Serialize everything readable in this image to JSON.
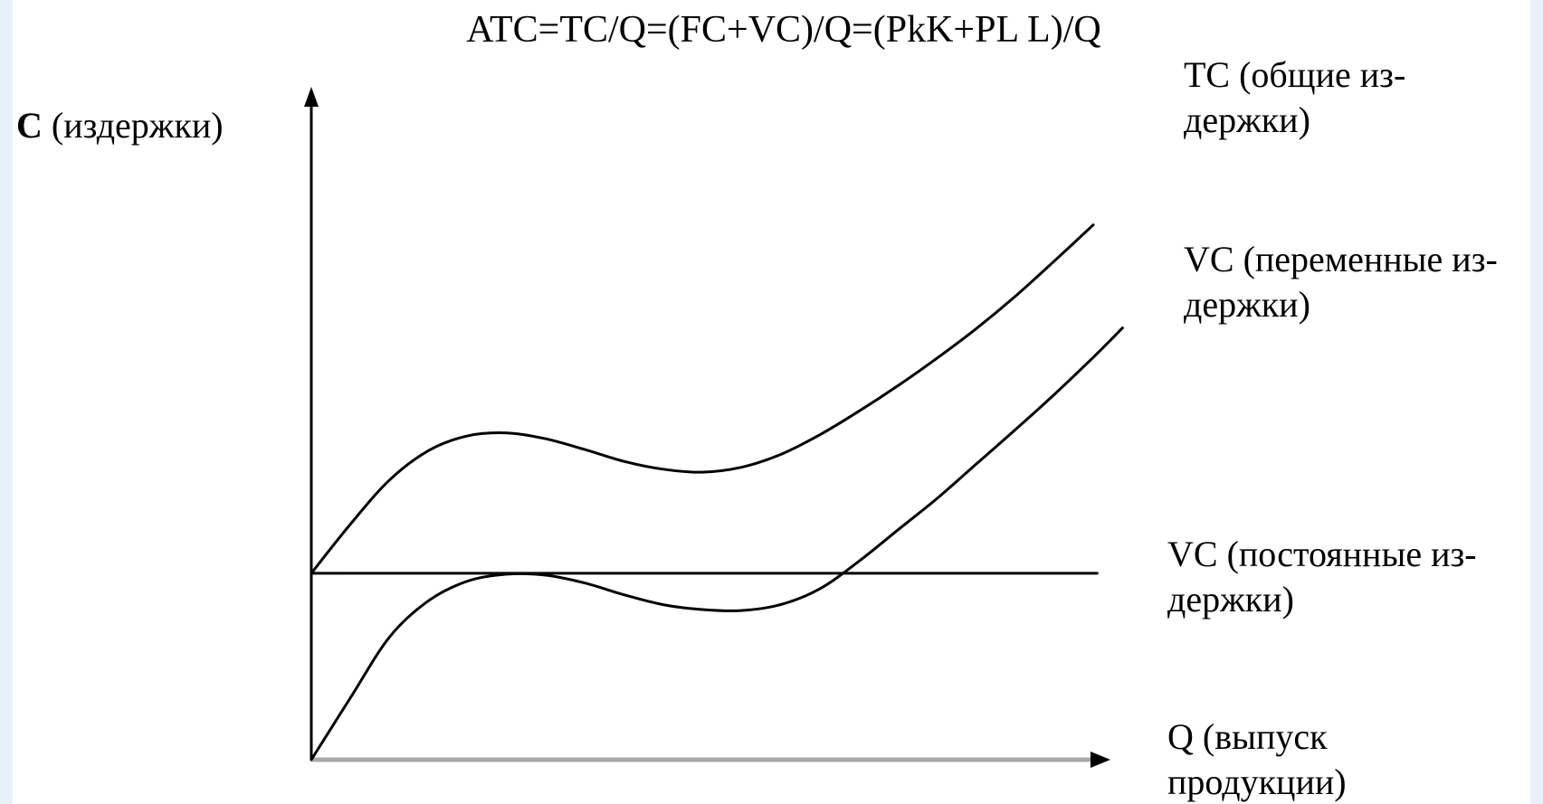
{
  "chart_data": {
    "type": "line",
    "title": "ATC=TC/Q=(FC+VC)/Q=(PkK+PL L)/Q",
    "ylabel": {
      "symbol": "C",
      "text": " (издержки)"
    },
    "xlabel": {
      "line1": "Q (выпуск",
      "line2": "продукции)"
    },
    "series": [
      {
        "id": "tc",
        "label_line1": "TC (общие из-",
        "label_line2": "держки)",
        "x": [
          0,
          2,
          4,
          6,
          8,
          10,
          12,
          14,
          16,
          18,
          20,
          22,
          24,
          26,
          28,
          30,
          32,
          34,
          36,
          38,
          40
        ],
        "values": [
          19,
          24,
          28.5,
          31.5,
          33,
          33.3,
          32.7,
          31.6,
          30.4,
          29.6,
          29.3,
          29.8,
          31.1,
          33.1,
          35.5,
          38.1,
          40.9,
          43.9,
          47.2,
          50.8,
          54.5
        ]
      },
      {
        "id": "vc",
        "label_line1": "VC (переменные из-",
        "label_line2": "держки)",
        "x": [
          0,
          2,
          4,
          6,
          8,
          10,
          12,
          14,
          16,
          18,
          20,
          22,
          24,
          26,
          28,
          30,
          32,
          34,
          36,
          38,
          40,
          41.5
        ],
        "values": [
          0,
          6.3,
          12.5,
          16.2,
          18.2,
          18.9,
          18.8,
          18,
          16.8,
          15.8,
          15.3,
          15.2,
          15.8,
          17.4,
          20.2,
          23.4,
          26.6,
          30.1,
          33.6,
          37.2,
          41,
          44
        ]
      },
      {
        "id": "fc",
        "label_line1": "VC (постоянные из-",
        "label_line2": "держки)",
        "x": [
          0,
          40.2
        ],
        "values": [
          19,
          19
        ]
      }
    ],
    "xlim": [
      0,
      40.6
    ],
    "ylim": [
      0,
      68.5
    ],
    "grid": false,
    "legend": "none"
  }
}
